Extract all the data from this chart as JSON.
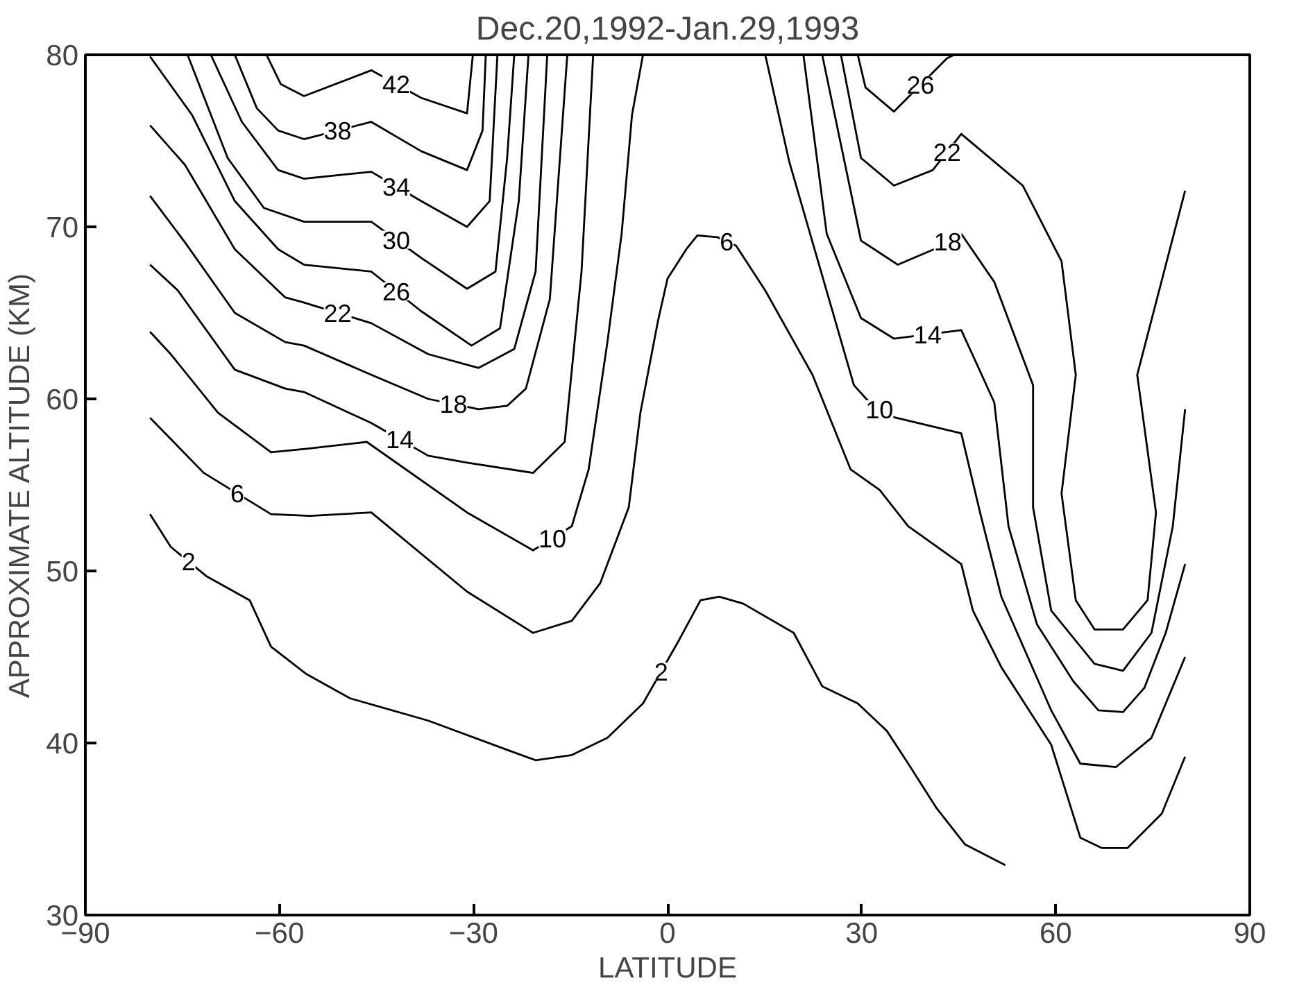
{
  "chart_data": {
    "type": "line",
    "title": "Dec.20,1992-Jan.29,1993",
    "xlabel": "LATITUDE",
    "ylabel": "APPROXIMATE ALTITUDE (KM)",
    "xlim": [
      -90,
      90
    ],
    "ylim": [
      30,
      80
    ],
    "xticks": [
      -90,
      -60,
      -30,
      0,
      30,
      60,
      90
    ],
    "yticks": [
      30,
      40,
      50,
      60,
      70,
      80
    ],
    "grid": false,
    "line_style": "solid",
    "series": [
      {
        "name": "2",
        "color": "#000000",
        "x": [
          -80,
          -76.8,
          -71.3,
          -64.6,
          -61.3,
          -55.8,
          -49.1,
          -37.0,
          -24.8,
          -20.4,
          -14.8,
          -9.3,
          -3.8,
          1.8,
          5.1,
          8.0,
          11.7,
          19.5,
          23.9,
          29.4,
          33.9,
          37.2,
          41.6,
          46.0,
          52.2
        ],
        "values": [
          53.3,
          51.4,
          49.7,
          48.3,
          45.6,
          44.0,
          42.6,
          41.3,
          39.6,
          39.0,
          39.3,
          40.3,
          42.3,
          46.0,
          48.3,
          48.5,
          48.1,
          46.4,
          43.3,
          42.3,
          40.7,
          38.8,
          36.2,
          34.1,
          32.9
        ]
      },
      {
        "name": "6",
        "color": "#000000",
        "x": [
          -80,
          -71.7,
          -61.3,
          -55.3,
          -45.8,
          -31.0,
          -20.8,
          -14.8,
          -10.4,
          -6.0,
          -4.2,
          -1.5,
          0,
          2.9,
          4.6,
          7.7,
          10.6,
          15.1,
          22.4,
          28.3,
          32.8,
          37.2,
          45.4,
          47.2,
          51.6,
          59.3,
          63.8,
          67.1,
          71.1,
          76.4,
          80
        ],
        "values": [
          58.9,
          55.7,
          53.3,
          53.2,
          53.4,
          48.8,
          46.4,
          47.1,
          49.3,
          53.7,
          59.2,
          64.5,
          67.0,
          68.7,
          69.5,
          69.4,
          68.9,
          66.3,
          61.4,
          55.9,
          54.7,
          52.6,
          50.4,
          47.7,
          44.4,
          39.9,
          34.5,
          33.9,
          33.9,
          35.9,
          39.2
        ]
      },
      {
        "name": "10",
        "color": "#000000",
        "x": [
          -80,
          -76.8,
          -69.5,
          -61.3,
          -55.8,
          -46.5,
          -31.0,
          -20.8,
          -14.8,
          -12.2,
          -9.3,
          -7.1,
          -5.5,
          -3.8,
          null,
          15.1,
          18.8,
          28.8,
          31.2,
          34.3,
          45.4,
          48.3,
          51.6,
          59.3,
          63.8,
          69.3,
          74.8,
          80
        ],
        "values": [
          63.9,
          62.6,
          59.2,
          56.9,
          57.1,
          57.5,
          53.4,
          51.2,
          52.6,
          55.9,
          63.3,
          69.6,
          76.5,
          80,
          null,
          80,
          73.8,
          60.8,
          59.8,
          59.0,
          58.0,
          53.4,
          48.5,
          41.9,
          38.8,
          38.6,
          40.3,
          45.0
        ]
      },
      {
        "name": "14",
        "color": "#000000",
        "x": [
          -80,
          -75.7,
          -66.9,
          -59.1,
          -56.2,
          -45.8,
          -37.0,
          -31.0,
          -20.8,
          -15.9,
          -13.3,
          -11.5,
          null,
          21.0,
          24.6,
          29.9,
          35.0,
          45.4,
          50.5,
          52.7,
          57.1,
          62.7,
          66.6,
          70.4,
          73.7,
          77.0,
          80
        ],
        "values": [
          67.8,
          66.3,
          61.7,
          60.6,
          60.4,
          58.6,
          56.7,
          56.3,
          55.7,
          57.5,
          67.4,
          80,
          null,
          80,
          69.6,
          64.7,
          63.5,
          64.0,
          59.8,
          52.6,
          46.9,
          43.6,
          41.9,
          41.8,
          43.2,
          46.4,
          50.4
        ]
      },
      {
        "name": "18",
        "color": "#000000",
        "x": [
          -80,
          -74.6,
          -66.9,
          -59.1,
          -56.2,
          -45.8,
          -37.0,
          -29.2,
          -24.8,
          -21.9,
          -18.2,
          -15.5,
          null,
          23.9,
          29.9,
          35.6,
          41.2,
          45.4,
          50.5,
          56.5,
          56.5,
          59.3,
          66.0,
          70.4,
          74.8,
          78.1,
          80
        ],
        "values": [
          71.8,
          69.1,
          65.0,
          63.3,
          63.1,
          61.4,
          60.0,
          59.4,
          59.6,
          60.6,
          65.8,
          80,
          null,
          80,
          69.2,
          67.8,
          68.7,
          69.6,
          66.8,
          60.8,
          53.7,
          47.7,
          44.6,
          44.2,
          46.4,
          52.6,
          59.4
        ]
      },
      {
        "name": "22",
        "color": "#000000",
        "x": [
          -80,
          -74.6,
          -66.9,
          -59.1,
          -56.2,
          -45.8,
          -37.0,
          -29.2,
          -23.7,
          -20.4,
          -18.6,
          null,
          26.8,
          29.9,
          35.0,
          41.0,
          45.4,
          54.9,
          60.9,
          63.1,
          60.9,
          63.1,
          66.0,
          70.4,
          74.2,
          75.5,
          72.6,
          80
        ],
        "values": [
          75.9,
          73.6,
          68.7,
          65.9,
          65.6,
          64.4,
          62.6,
          61.8,
          62.9,
          67.4,
          80,
          null,
          80,
          74.0,
          72.4,
          73.3,
          75.4,
          72.4,
          68.0,
          61.4,
          54.5,
          48.3,
          46.6,
          46.6,
          48.3,
          53.4,
          61.4,
          72.1
        ]
      },
      {
        "name": "26",
        "color": "#000000",
        "x": [
          -80,
          -73.5,
          -66.9,
          -60.2,
          -56.2,
          -45.8,
          -38.1,
          -30.3,
          -25.9,
          -23.0,
          -21.5,
          null,
          29.4,
          30.6,
          35.0,
          43.2,
          44.3
        ],
        "values": [
          79.9,
          76.5,
          71.5,
          68.7,
          67.8,
          67.4,
          65.1,
          63.1,
          64.1,
          71.5,
          80,
          null,
          80,
          78.1,
          76.7,
          79.8,
          80
        ]
      },
      {
        "name": "30",
        "color": "#000000",
        "x": [
          -74.2,
          -68.0,
          -62.4,
          -56.2,
          -45.8,
          -38.1,
          -31.0,
          -26.6,
          -24.8,
          -23.7
        ],
        "values": [
          80,
          74.0,
          71.1,
          70.3,
          70.3,
          68.2,
          66.4,
          67.4,
          74.0,
          80
        ]
      },
      {
        "name": "34",
        "color": "#000000",
        "x": [
          -70.6,
          -65.8,
          -60.2,
          -56.2,
          -45.8,
          -38.1,
          -31.0,
          -27.5,
          -26.3
        ],
        "values": [
          80,
          76.1,
          73.3,
          72.8,
          73.2,
          71.5,
          70.0,
          71.5,
          80
        ]
      },
      {
        "name": "38",
        "color": "#000000",
        "x": [
          -66.9,
          -63.5,
          -60.2,
          -56.2,
          -45.8,
          -38.1,
          -31.0,
          -28.6,
          -28.1
        ],
        "values": [
          80,
          76.9,
          75.6,
          75.1,
          76.1,
          74.4,
          73.3,
          75.6,
          80
        ]
      },
      {
        "name": "42",
        "color": "#000000",
        "x": [
          -62.0,
          -59.8,
          -56.2,
          -45.8,
          -38.1,
          -31.0,
          -30.1
        ],
        "values": [
          80,
          78.3,
          77.6,
          79.1,
          77.5,
          76.6,
          80
        ]
      }
    ]
  }
}
